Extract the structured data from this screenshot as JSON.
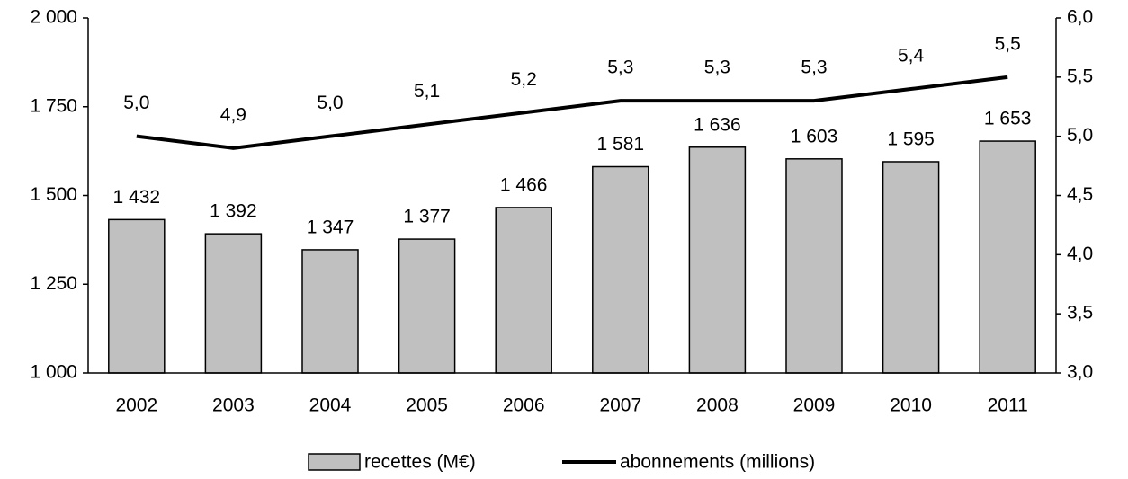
{
  "chart_data": {
    "type": "bar_line",
    "categories": [
      "2002",
      "2003",
      "2004",
      "2005",
      "2006",
      "2007",
      "2008",
      "2009",
      "2010",
      "2011"
    ],
    "series": [
      {
        "name": "recettes (M€)",
        "color": "#c0c0c0",
        "type": "bar",
        "values": [
          1432,
          1392,
          1347,
          1377,
          1466,
          1581,
          1636,
          1603,
          1595,
          1653
        ],
        "value_labels": [
          "1 432",
          "1 392",
          "1 347",
          "1 377",
          "1 466",
          "1 581",
          "1 636",
          "1 603",
          "1 595",
          "1 653"
        ]
      },
      {
        "name": "abonnements (millions)",
        "color": "#000000",
        "type": "line",
        "axis": "y2",
        "values": [
          5.0,
          4.9,
          5.0,
          5.1,
          5.2,
          5.3,
          5.3,
          5.3,
          5.4,
          5.5
        ],
        "value_labels": [
          "5,0",
          "4,9",
          "5,0",
          "5,1",
          "5,2",
          "5,3",
          "5,3",
          "5,3",
          "5,4",
          "5,5"
        ]
      }
    ],
    "ylim": [
      1000,
      2000
    ],
    "yticks": [
      {
        "value": 1000,
        "label": "1 000"
      },
      {
        "value": 1250,
        "label": "1 250"
      },
      {
        "value": 1500,
        "label": "1 500"
      },
      {
        "value": 1750,
        "label": "1 750"
      },
      {
        "value": 2000,
        "label": "2 000"
      }
    ],
    "y2lim": [
      3.0,
      6.0
    ],
    "y2ticks": [
      {
        "value": 3.0,
        "label": "3,0"
      },
      {
        "value": 3.5,
        "label": "3,5"
      },
      {
        "value": 4.0,
        "label": "4,0"
      },
      {
        "value": 4.5,
        "label": "4,5"
      },
      {
        "value": 5.0,
        "label": "5,0"
      },
      {
        "value": 5.5,
        "label": "5,5"
      },
      {
        "value": 6.0,
        "label": "6,0"
      }
    ],
    "legend": "bottom"
  }
}
